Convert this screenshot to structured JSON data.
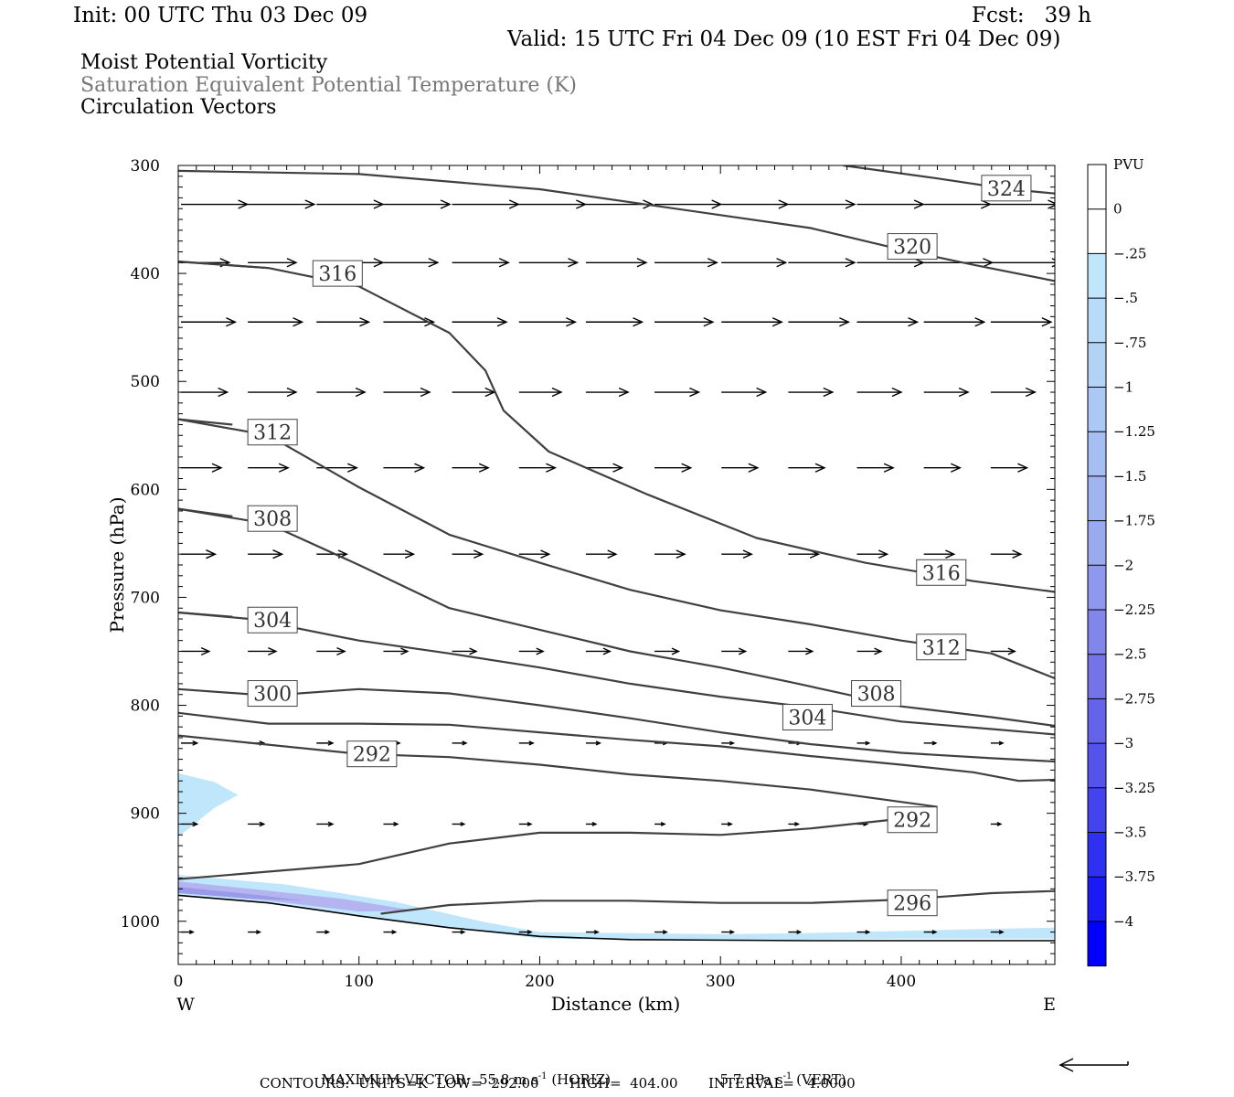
{
  "header": {
    "init": "Init: 00 UTC Thu 03 Dec 09",
    "fcst": "Fcst:   39 h",
    "valid": "Valid: 15 UTC Fri 04 Dec 09 (10 EST Fri 04 Dec 09)"
  },
  "titles": {
    "line1": "Moist Potential Vorticity",
    "line2": "Saturation Equivalent Potential Temperature (K)",
    "line3": "Circulation Vectors"
  },
  "footer": {
    "max_vector_label": "MAXIMUM VECTOR:",
    "horiz_value": "55.8 m s",
    "horiz_exp": "-1",
    "horiz_tag": "(HORIZ)",
    "vert_value": "5.7 dPa s",
    "vert_exp": "-1",
    "vert_tag": "(VERT)",
    "contours": "CONTOURS:  UNITS=K  LOW=  292.00       HIGH=  404.00       INTERVAL=   4.0000"
  },
  "colors": {
    "contour": "#404040",
    "pv_fill_light": "#bfe6fb",
    "pv_fill_mid": "#b4b4f0",
    "pv_fill_dark": "#9a9ae8"
  },
  "chart_data": {
    "type": "cross-section",
    "title": "Moist Potential Vorticity / Saturation Equivalent Potential Temperature (K) / Circulation Vectors",
    "xlabel": "Distance (km)",
    "ylabel": "Pressure (hPa)",
    "xlim": [
      0,
      485
    ],
    "ylim": [
      1040,
      300
    ],
    "x_ticks": [
      0,
      100,
      200,
      300,
      400
    ],
    "y_ticks": [
      300,
      400,
      500,
      600,
      700,
      800,
      900,
      1000
    ],
    "x_end_labels": {
      "left": "W",
      "right": "E"
    },
    "colorbar": {
      "label": "PVU",
      "ticks": [
        "0",
        "-.25",
        "-.5",
        "-.75",
        "-1",
        "-1.25",
        "-1.5",
        "-1.75",
        "-2",
        "-2.25",
        "-2.5",
        "-2.75",
        "-3",
        "-3.25",
        "-3.5",
        "-3.75",
        "-4"
      ],
      "colors": [
        "#ffffff",
        "#ffffff",
        "#bfe6fb",
        "#b8dcf8",
        "#b2d2f6",
        "#acc8f4",
        "#a6bef2",
        "#a0b4f0",
        "#9aaaee",
        "#8e98ec",
        "#8286ea",
        "#7474e8",
        "#6464ea",
        "#5454ec",
        "#4444ee",
        "#3030f0",
        "#1a1af4",
        "#0000ff"
      ]
    },
    "contours": [
      {
        "level": 324,
        "points": [
          [
            368,
            300
          ],
          [
            420,
            312
          ],
          [
            460,
            322
          ],
          [
            485,
            326
          ]
        ],
        "label_at": [
          444,
          321
        ]
      },
      {
        "level": 320,
        "points": [
          [
            0,
            305
          ],
          [
            100,
            308
          ],
          [
            200,
            322
          ],
          [
            300,
            346
          ],
          [
            350,
            358
          ],
          [
            400,
            378
          ],
          [
            440,
            392
          ],
          [
            485,
            407
          ]
        ],
        "label_at": [
          392,
          375
        ]
      },
      {
        "level": 316,
        "points": [
          [
            0,
            389
          ],
          [
            50,
            395
          ],
          [
            100,
            412
          ],
          [
            150,
            455
          ],
          [
            170,
            490
          ],
          [
            180,
            527
          ],
          [
            205,
            565
          ],
          [
            260,
            605
          ],
          [
            320,
            645
          ],
          [
            380,
            668
          ],
          [
            440,
            685
          ],
          [
            485,
            695
          ]
        ],
        "label_at": [
          74,
          400
        ]
      },
      {
        "level": 316,
        "points": [
          [
            0,
            389
          ],
          [
            50,
            395
          ]
        ],
        "label_at": [
          408,
          677
        ]
      },
      {
        "level": 312,
        "points": [
          [
            0,
            535
          ],
          [
            50,
            550
          ],
          [
            100,
            598
          ],
          [
            150,
            642
          ],
          [
            200,
            668
          ],
          [
            250,
            693
          ],
          [
            300,
            712
          ],
          [
            350,
            725
          ],
          [
            400,
            740
          ],
          [
            450,
            752
          ],
          [
            485,
            775
          ]
        ],
        "label_at": [
          38,
          547
        ]
      },
      {
        "level": 312,
        "points": [
          [
            0,
            535
          ],
          [
            30,
            540
          ]
        ],
        "label_at": [
          408,
          746
        ]
      },
      {
        "level": 308,
        "points": [
          [
            0,
            618
          ],
          [
            50,
            632
          ],
          [
            100,
            670
          ],
          [
            150,
            710
          ],
          [
            200,
            730
          ],
          [
            250,
            750
          ],
          [
            300,
            765
          ],
          [
            340,
            779
          ],
          [
            370,
            790
          ],
          [
            400,
            801
          ],
          [
            450,
            811
          ],
          [
            485,
            819
          ]
        ],
        "label_at": [
          38,
          627
        ]
      },
      {
        "level": 308,
        "points": [
          [
            0,
            618
          ],
          [
            30,
            625
          ]
        ],
        "label_at": [
          372,
          789
        ]
      },
      {
        "level": 304,
        "points": [
          [
            0,
            714
          ],
          [
            40,
            720
          ],
          [
            100,
            740
          ],
          [
            150,
            752
          ],
          [
            200,
            765
          ],
          [
            250,
            780
          ],
          [
            300,
            792
          ],
          [
            350,
            802
          ],
          [
            400,
            815
          ],
          [
            450,
            822
          ],
          [
            485,
            827
          ]
        ],
        "label_at": [
          38,
          721
        ]
      },
      {
        "level": 304,
        "points": [
          [
            0,
            714
          ],
          [
            30,
            718
          ]
        ],
        "label_at": [
          334,
          811
        ]
      },
      {
        "level": 300,
        "points": [
          [
            0,
            785
          ],
          [
            50,
            791
          ],
          [
            100,
            785
          ],
          [
            150,
            789
          ],
          [
            200,
            800
          ],
          [
            250,
            812
          ],
          [
            300,
            825
          ],
          [
            350,
            836
          ],
          [
            400,
            844
          ],
          [
            450,
            849
          ],
          [
            485,
            852
          ]
        ],
        "label_at": [
          38,
          789
        ]
      },
      {
        "level": 296,
        "points": [
          [
            0,
            807
          ],
          [
            50,
            817
          ],
          [
            100,
            817
          ],
          [
            150,
            818
          ],
          [
            200,
            825
          ],
          [
            250,
            832
          ],
          [
            300,
            838
          ],
          [
            350,
            847
          ],
          [
            400,
            855
          ],
          [
            440,
            862
          ],
          [
            465,
            870
          ],
          [
            485,
            869
          ]
        ],
        "label_at": [
          392,
          983
        ]
      },
      {
        "level": 292,
        "points": [
          [
            0,
            828
          ],
          [
            100,
            845
          ],
          [
            150,
            848
          ],
          [
            200,
            855
          ],
          [
            250,
            864
          ],
          [
            300,
            870
          ],
          [
            350,
            878
          ],
          [
            420,
            894
          ]
        ],
        "label_at": [
          93,
          845
        ]
      },
      {
        "level": 292,
        "points": [
          [
            0,
            961
          ],
          [
            100,
            947
          ],
          [
            150,
            928
          ],
          [
            200,
            918
          ],
          [
            250,
            918
          ],
          [
            300,
            920
          ],
          [
            350,
            914
          ],
          [
            400,
            905
          ],
          [
            420,
            894
          ]
        ],
        "label_at": [
          392,
          906
        ]
      },
      {
        "level": 296,
        "points": [
          [
            112,
            993
          ],
          [
            150,
            985
          ],
          [
            200,
            981
          ],
          [
            250,
            981
          ],
          [
            300,
            983
          ],
          [
            350,
            983
          ],
          [
            400,
            980
          ],
          [
            450,
            974
          ],
          [
            485,
            972
          ]
        ],
        "label_at": [
          392,
          983
        ]
      }
    ],
    "ground_line": [
      [
        0,
        976
      ],
      [
        50,
        983
      ],
      [
        100,
        995
      ],
      [
        150,
        1006
      ],
      [
        200,
        1014
      ],
      [
        250,
        1017
      ],
      [
        350,
        1018
      ],
      [
        485,
        1018
      ]
    ],
    "pv_regions": [
      {
        "pvu": -0.25,
        "points": [
          [
            0,
            863
          ],
          [
            20,
            871
          ],
          [
            33,
            883
          ],
          [
            20,
            895
          ],
          [
            0,
            922
          ]
        ]
      },
      {
        "pvu": -0.25,
        "points": [
          [
            0,
            957
          ],
          [
            60,
            966
          ],
          [
            120,
            982
          ],
          [
            170,
            1001
          ],
          [
            200,
            1010
          ],
          [
            250,
            1011
          ],
          [
            300,
            1012
          ],
          [
            350,
            1011
          ],
          [
            400,
            1009
          ],
          [
            450,
            1007
          ],
          [
            485,
            1006
          ],
          [
            485,
            1016
          ],
          [
            400,
            1016
          ],
          [
            300,
            1018
          ],
          [
            200,
            1016
          ],
          [
            150,
            1006
          ],
          [
            100,
            995
          ],
          [
            50,
            983
          ],
          [
            0,
            976
          ]
        ]
      },
      {
        "pvu": -0.5,
        "points": [
          [
            0,
            963
          ],
          [
            40,
            970
          ],
          [
            90,
            979
          ],
          [
            130,
            990
          ],
          [
            100,
            991
          ],
          [
            50,
            981
          ],
          [
            0,
            973
          ]
        ]
      },
      {
        "pvu": -0.75,
        "points": [
          [
            0,
            968
          ],
          [
            40,
            975
          ],
          [
            70,
            981
          ],
          [
            40,
            979
          ],
          [
            0,
            974
          ]
        ]
      }
    ],
    "vector_columns_x": [
      0,
      37,
      75,
      112,
      150,
      187,
      224,
      262,
      299,
      336,
      374,
      411,
      448
    ],
    "vector_rows": [
      {
        "p": 336,
        "u": [
          33,
          33,
          33,
          33,
          33,
          33,
          33,
          33,
          33,
          33,
          33,
          33,
          33
        ]
      },
      {
        "p": 390,
        "u": [
          24,
          24,
          33,
          27,
          28,
          29,
          30,
          31,
          32,
          33,
          33,
          34,
          35
        ]
      },
      {
        "p": 445,
        "u": [
          27,
          27,
          26,
          25,
          27,
          28,
          28,
          29,
          30,
          30,
          30,
          30,
          30
        ]
      },
      {
        "p": 510,
        "u": [
          23,
          24,
          24,
          23,
          21,
          21,
          21,
          22,
          22,
          22,
          22,
          22,
          22
        ]
      },
      {
        "p": 580,
        "u": [
          20,
          20,
          20,
          20,
          18,
          18,
          18,
          18,
          18,
          18,
          18,
          18,
          18
        ]
      },
      {
        "p": 660,
        "u": [
          17,
          17,
          15,
          15,
          15,
          15,
          15,
          15,
          15,
          15,
          15,
          15,
          15
        ]
      },
      {
        "p": 750,
        "u": [
          14,
          14,
          14,
          12,
          12,
          12,
          12,
          12,
          12,
          12,
          12,
          12,
          12
        ]
      },
      {
        "p": 835,
        "u": [
          8,
          8,
          8,
          8,
          7,
          7,
          7,
          6,
          6,
          6,
          6,
          6,
          6
        ]
      },
      {
        "p": 910,
        "u": [
          8,
          8,
          8,
          7,
          6,
          6,
          5,
          5,
          5,
          5,
          5,
          5,
          5
        ]
      },
      {
        "p": 1010,
        "u": [
          6,
          6,
          6,
          6,
          6,
          6,
          6,
          6,
          6,
          6,
          6,
          6,
          6
        ]
      }
    ]
  }
}
